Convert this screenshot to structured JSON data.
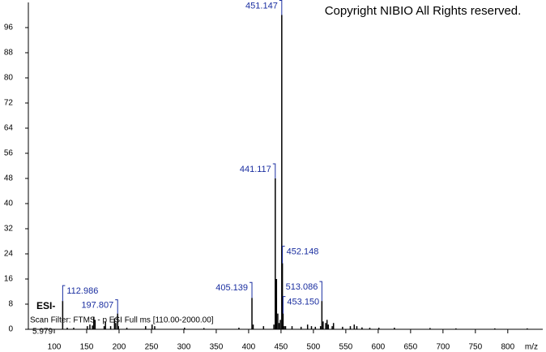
{
  "chart_data": {
    "type": "stem",
    "copyright": "Copyright NIBIO All Rights reserved.",
    "ion_mode": "ESI-",
    "scan_filter": "Scan Filter: FTMS - p ESI Full ms [110.00-2000.00]",
    "retention_time": "5.979",
    "xlabel": "m/z",
    "color": "#000000",
    "label_color": "#1a2ea0",
    "x": [
      112.986,
      120,
      130,
      151,
      155,
      159,
      161,
      163,
      177,
      179,
      187,
      193,
      195,
      197.807,
      199,
      212,
      241,
      251,
      255,
      301,
      331,
      385,
      405.139,
      407,
      423,
      439,
      441.117,
      442,
      443,
      445,
      447,
      449,
      451.147,
      452.148,
      453.15,
      455,
      457,
      467,
      481,
      491,
      497,
      503,
      511,
      513.086,
      515,
      519,
      521,
      523,
      529,
      531,
      545,
      557,
      563,
      567,
      575,
      587,
      601,
      625,
      680,
      720,
      780,
      830
    ],
    "values": [
      9,
      0.5,
      0.5,
      1,
      1.5,
      1.2,
      4,
      3,
      1,
      2.5,
      1,
      3.5,
      2,
      5,
      1,
      0.5,
      1,
      1.5,
      1,
      0.5,
      0.4,
      0.5,
      10,
      1.5,
      1,
      1.5,
      48,
      10,
      16,
      5,
      2,
      3,
      100,
      21,
      5,
      1,
      1,
      1,
      0.8,
      1.5,
      1,
      0.8,
      1,
      9,
      2.5,
      2,
      3,
      1.5,
      1,
      2,
      0.8,
      1,
      1.5,
      1,
      0.6,
      0.5,
      0.5,
      0.5,
      0.4,
      0.3,
      0.3,
      0.3
    ],
    "x_labels": [
      "112.986",
      null,
      null,
      null,
      null,
      null,
      null,
      null,
      null,
      null,
      null,
      null,
      null,
      "197.807",
      null,
      null,
      null,
      null,
      null,
      null,
      null,
      null,
      "405.139",
      null,
      null,
      null,
      "441.117",
      null,
      null,
      null,
      null,
      null,
      "451.147",
      "452.148",
      "453.150",
      null,
      null,
      null,
      null,
      null,
      null,
      null,
      null,
      "513.086",
      null,
      null,
      null,
      null,
      null,
      null,
      null,
      null,
      null,
      null,
      null,
      null,
      null,
      null,
      null,
      null,
      null,
      null
    ],
    "xlim": [
      60,
      854
    ],
    "ylim": [
      0,
      104
    ],
    "xticks": [
      100,
      150,
      200,
      250,
      300,
      350,
      400,
      450,
      500,
      550,
      600,
      650,
      700,
      750,
      800
    ],
    "yticks": [
      0,
      8,
      16,
      24,
      32,
      40,
      48,
      56,
      64,
      72,
      80,
      88,
      96
    ]
  }
}
